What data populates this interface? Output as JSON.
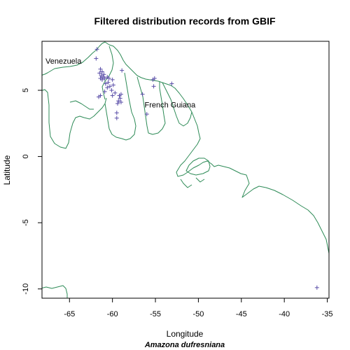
{
  "chart_data": {
    "type": "scatter",
    "title": "Filtered distribution records from GBIF",
    "xlabel": "Longitude",
    "ylabel": "Latitude",
    "subtitle": "Amazona dufresniana",
    "xlim": [
      -68.2,
      -34.8
    ],
    "ylim": [
      -10.7,
      8.7
    ],
    "xticks": [
      -65,
      -60,
      -55,
      -50,
      -45,
      -40,
      -35
    ],
    "xtick_labels": [
      "-65",
      "-60",
      "-55",
      "-50",
      "-45",
      "-40",
      "-35"
    ],
    "yticks": [
      -10,
      -5,
      0,
      5
    ],
    "ytick_labels": [
      "-10",
      "-5",
      "0",
      "5"
    ],
    "grid": false,
    "marker": "+",
    "marker_color": "#5a4ea8",
    "coast_color": "#2e8b57",
    "region_labels": [
      {
        "text": "Venezuela",
        "lon": -65.7,
        "lat": 7.0
      },
      {
        "text": "French Guiana",
        "lon": -53.3,
        "lat": 3.7
      }
    ],
    "records": [
      {
        "lon": -61.8,
        "lat": 8.1
      },
      {
        "lon": -61.9,
        "lat": 7.4
      },
      {
        "lon": -61.4,
        "lat": 6.6
      },
      {
        "lon": -61.2,
        "lat": 6.4
      },
      {
        "lon": -61.5,
        "lat": 6.3
      },
      {
        "lon": -61.3,
        "lat": 6.1
      },
      {
        "lon": -61.1,
        "lat": 6.0
      },
      {
        "lon": -61.4,
        "lat": 5.9
      },
      {
        "lon": -61.0,
        "lat": 6.2
      },
      {
        "lon": -61.2,
        "lat": 5.8
      },
      {
        "lon": -60.9,
        "lat": 5.9
      },
      {
        "lon": -60.6,
        "lat": 6.0
      },
      {
        "lon": -60.4,
        "lat": 5.9
      },
      {
        "lon": -60.5,
        "lat": 5.6
      },
      {
        "lon": -60.8,
        "lat": 5.5
      },
      {
        "lon": -60.3,
        "lat": 5.3
      },
      {
        "lon": -60.6,
        "lat": 5.2
      },
      {
        "lon": -60.9,
        "lat": 4.9
      },
      {
        "lon": -60.0,
        "lat": 5.8
      },
      {
        "lon": -59.9,
        "lat": 5.4
      },
      {
        "lon": -60.1,
        "lat": 5.0
      },
      {
        "lon": -59.7,
        "lat": 4.8
      },
      {
        "lon": -60.0,
        "lat": 4.6
      },
      {
        "lon": -61.4,
        "lat": 4.6
      },
      {
        "lon": -61.6,
        "lat": 4.5
      },
      {
        "lon": -59.2,
        "lat": 4.6
      },
      {
        "lon": -59.0,
        "lat": 4.7
      },
      {
        "lon": -59.1,
        "lat": 4.4
      },
      {
        "lon": -59.3,
        "lat": 4.2
      },
      {
        "lon": -59.4,
        "lat": 4.0
      },
      {
        "lon": -59.0,
        "lat": 4.1
      },
      {
        "lon": -58.9,
        "lat": 6.5
      },
      {
        "lon": -59.5,
        "lat": 3.3
      },
      {
        "lon": -59.5,
        "lat": 2.9
      },
      {
        "lon": -56.5,
        "lat": 4.7
      },
      {
        "lon": -56.0,
        "lat": 3.2
      },
      {
        "lon": -55.1,
        "lat": 5.9
      },
      {
        "lon": -55.3,
        "lat": 5.8
      },
      {
        "lon": -55.2,
        "lat": 5.3
      },
      {
        "lon": -53.1,
        "lat": 5.5
      },
      {
        "lon": -36.2,
        "lat": -9.9
      }
    ]
  }
}
